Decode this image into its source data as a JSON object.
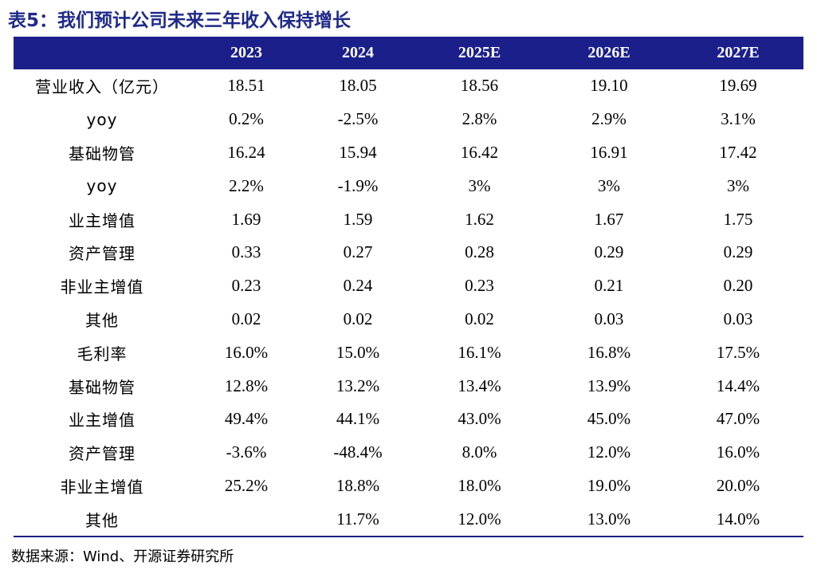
{
  "title": "表5：我们预计公司未来三年收入保持增长",
  "columns": [
    "",
    "2023",
    "2024",
    "2025E",
    "2026E",
    "2027E"
  ],
  "rows": [
    {
      "label": "营业收入（亿元）",
      "values": [
        "18.51",
        "18.05",
        "18.56",
        "19.10",
        "19.69"
      ]
    },
    {
      "label": "yoy",
      "values": [
        "0.2%",
        "-2.5%",
        "2.8%",
        "2.9%",
        "3.1%"
      ]
    },
    {
      "label": "基础物管",
      "values": [
        "16.24",
        "15.94",
        "16.42",
        "16.91",
        "17.42"
      ]
    },
    {
      "label": "yoy",
      "values": [
        "2.2%",
        "-1.9%",
        "3%",
        "3%",
        "3%"
      ]
    },
    {
      "label": "业主增值",
      "values": [
        "1.69",
        "1.59",
        "1.62",
        "1.67",
        "1.75"
      ]
    },
    {
      "label": "资产管理",
      "values": [
        "0.33",
        "0.27",
        "0.28",
        "0.29",
        "0.29"
      ]
    },
    {
      "label": "非业主增值",
      "values": [
        "0.23",
        "0.24",
        "0.23",
        "0.21",
        "0.20"
      ]
    },
    {
      "label": "其他",
      "values": [
        "0.02",
        "0.02",
        "0.02",
        "0.03",
        "0.03"
      ]
    },
    {
      "label": "毛利率",
      "values": [
        "16.0%",
        "15.0%",
        "16.1%",
        "16.8%",
        "17.5%"
      ]
    },
    {
      "label": "基础物管",
      "values": [
        "12.8%",
        "13.2%",
        "13.4%",
        "13.9%",
        "14.4%"
      ]
    },
    {
      "label": "业主增值",
      "values": [
        "49.4%",
        "44.1%",
        "43.0%",
        "45.0%",
        "47.0%"
      ]
    },
    {
      "label": "资产管理",
      "values": [
        "-3.6%",
        "-48.4%",
        "8.0%",
        "12.0%",
        "16.0%"
      ]
    },
    {
      "label": "非业主增值",
      "values": [
        "25.2%",
        "18.8%",
        "18.0%",
        "19.0%",
        "20.0%"
      ]
    },
    {
      "label": "其他",
      "values": [
        "",
        "11.7%",
        "12.0%",
        "13.0%",
        "14.0%"
      ]
    }
  ],
  "source": "数据来源：Wind、开源证券研究所",
  "colors": {
    "title": "#1f2a8a",
    "header_bg": "#1b1f8a",
    "header_text": "#ffffff"
  }
}
